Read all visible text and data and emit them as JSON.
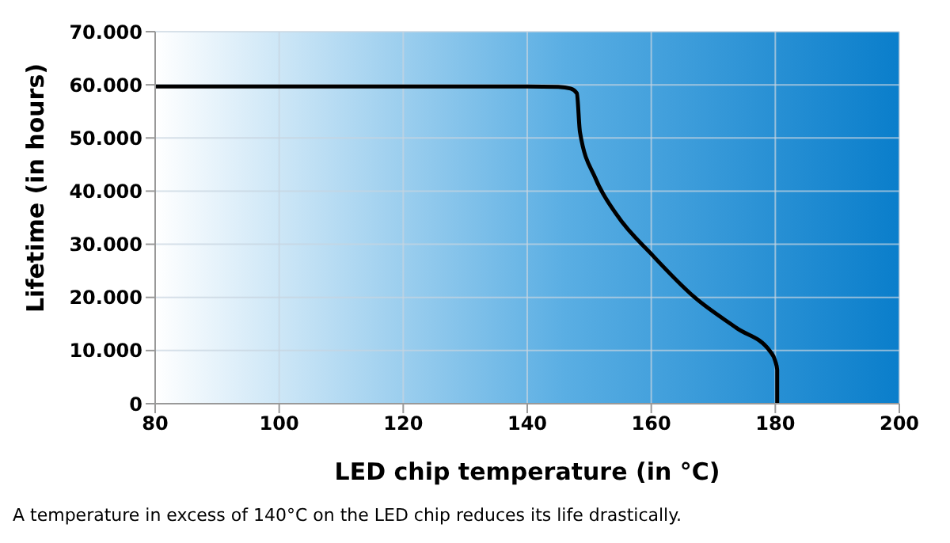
{
  "chart_data": {
    "type": "line",
    "xlabel": "LED chip temperature (in °C)",
    "ylabel": "Lifetime (in hours)",
    "annotations": [
      "A temperature in excess of 140°C on the LED chip reduces its life drastically."
    ],
    "series": [
      {
        "color": "#000000",
        "x": [
          80,
          100,
          120,
          140,
          145,
          147,
          148,
          148.5,
          151,
          154.4,
          160.3,
          167,
          173.8,
          179.2,
          180,
          180.3,
          180.3
        ],
        "values": [
          59700,
          59700,
          59700,
          59700,
          59600,
          59300,
          58400,
          51100,
          42400,
          35600,
          27800,
          20000,
          14200,
          9800,
          8000,
          6400,
          0
        ]
      }
    ],
    "xlim": [
      80,
      200
    ],
    "xticks": [
      80,
      100,
      120,
      140,
      160,
      180,
      200
    ],
    "ylim": [
      0,
      70000
    ],
    "yticks": [
      0,
      {
        "value": 10000,
        "label": "10.000"
      },
      {
        "value": 20000,
        "label": "20.000"
      },
      {
        "value": 30000,
        "label": "30.000"
      },
      {
        "value": 40000,
        "label": "40.000"
      },
      {
        "value": 50000,
        "label": "50.000"
      },
      {
        "value": 60000,
        "label": "60.000"
      },
      {
        "value": 70000,
        "label": "70.000"
      }
    ],
    "grid": true,
    "marker": "none",
    "line_style": "solid"
  }
}
